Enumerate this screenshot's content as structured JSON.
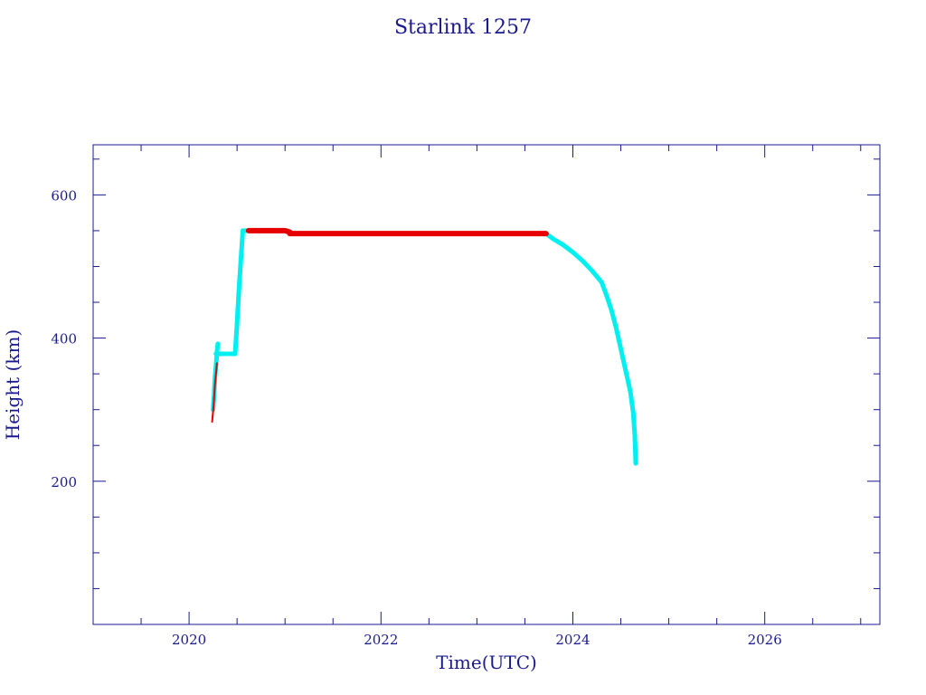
{
  "chart_data": {
    "type": "scatter",
    "title": "Starlink 1257",
    "xlabel": "Time(UTC)",
    "ylabel": "Height (km)",
    "xlim": [
      2019.0,
      2027.2
    ],
    "ylim": [
      0,
      670
    ],
    "x_ticks": [
      2020,
      2022,
      2024,
      2026
    ],
    "x_tick_labels": [
      "2020",
      "2022",
      "2024",
      "2026"
    ],
    "y_ticks": [
      200,
      400,
      600
    ],
    "y_tick_labels": [
      "200",
      "400",
      "600"
    ],
    "grid": false,
    "colors": {
      "frame": "#1a1a8c",
      "text": "#1a1a8c",
      "maneuvering": "#00f0f0",
      "stable": "#e60000"
    },
    "series": [
      {
        "color": "#00f0f0",
        "segments": [
          [
            [
              2020.25,
              300
            ],
            [
              2020.26,
              320
            ],
            [
              2020.27,
              345
            ],
            [
              2020.28,
              360
            ],
            [
              2020.29,
              380
            ],
            [
              2020.3,
              392
            ]
          ],
          [
            [
              2020.28,
              378
            ],
            [
              2020.35,
              378
            ],
            [
              2020.42,
              378
            ],
            [
              2020.48,
              378
            ]
          ],
          [
            [
              2020.48,
              378
            ],
            [
              2020.5,
              420
            ],
            [
              2020.52,
              470
            ],
            [
              2020.54,
              510
            ],
            [
              2020.56,
              550
            ],
            [
              2020.62,
              550
            ]
          ],
          [
            [
              2023.72,
              546
            ],
            [
              2023.8,
              538
            ],
            [
              2023.9,
              530
            ],
            [
              2024.0,
              520
            ],
            [
              2024.1,
              508
            ],
            [
              2024.2,
              494
            ],
            [
              2024.3,
              478
            ],
            [
              2024.35,
              460
            ],
            [
              2024.4,
              440
            ],
            [
              2024.45,
              415
            ],
            [
              2024.5,
              385
            ],
            [
              2024.55,
              355
            ],
            [
              2024.6,
              325
            ],
            [
              2024.63,
              295
            ],
            [
              2024.645,
              265
            ],
            [
              2024.65,
              245
            ],
            [
              2024.655,
              225
            ]
          ]
        ]
      },
      {
        "color": "#e60000",
        "segments": [
          [
            [
              2020.24,
              283
            ],
            [
              2020.255,
              305
            ],
            [
              2020.27,
              335
            ],
            [
              2020.29,
              365
            ]
          ],
          [
            [
              2020.62,
              550
            ],
            [
              2020.8,
              550
            ],
            [
              2021.0,
              550
            ],
            [
              2021.05,
              548
            ]
          ],
          [
            [
              2021.05,
              546
            ],
            [
              2021.5,
              546
            ],
            [
              2022.0,
              546
            ],
            [
              2022.5,
              546
            ],
            [
              2023.0,
              546
            ],
            [
              2023.5,
              546
            ],
            [
              2023.72,
              546
            ]
          ]
        ]
      }
    ]
  }
}
